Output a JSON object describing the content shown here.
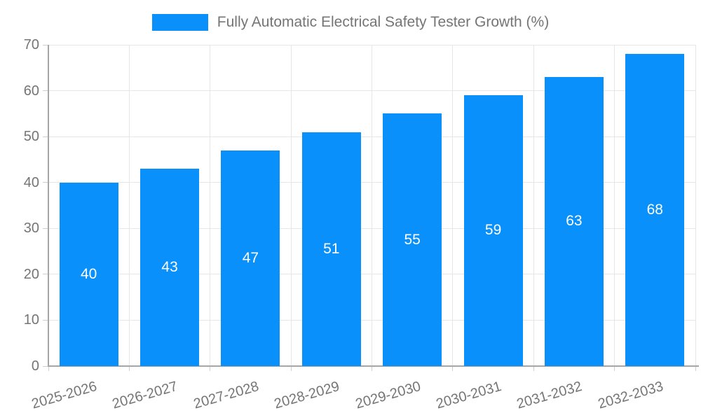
{
  "legend": {
    "label": "Fully Automatic Electrical Safety Tester Growth (%)"
  },
  "chart_data": {
    "type": "bar",
    "title": "Fully Automatic Electrical Safety Tester Growth (%)",
    "categories": [
      "2025-2026",
      "2026-2027",
      "2027-2028",
      "2028-2029",
      "2029-2030",
      "2030-2031",
      "2031-2032",
      "2032-2033"
    ],
    "values": [
      40,
      43,
      47,
      51,
      55,
      59,
      63,
      68
    ],
    "yticks": [
      0,
      10,
      20,
      30,
      40,
      50,
      60,
      70
    ],
    "ylim": [
      0,
      70
    ],
    "xlabel": "",
    "ylabel": "",
    "grid": true,
    "legend_position": "top-center",
    "bar_labels_inside": "centered",
    "colors": {
      "bar": "#0a90fa",
      "bar_label": "#ffffff",
      "axis_text": "#757575",
      "grid_line": "#e6e6e6",
      "axis_line": "#a6a6a6",
      "tick_line": "#cfcfcf",
      "background": "#ffffff"
    }
  }
}
